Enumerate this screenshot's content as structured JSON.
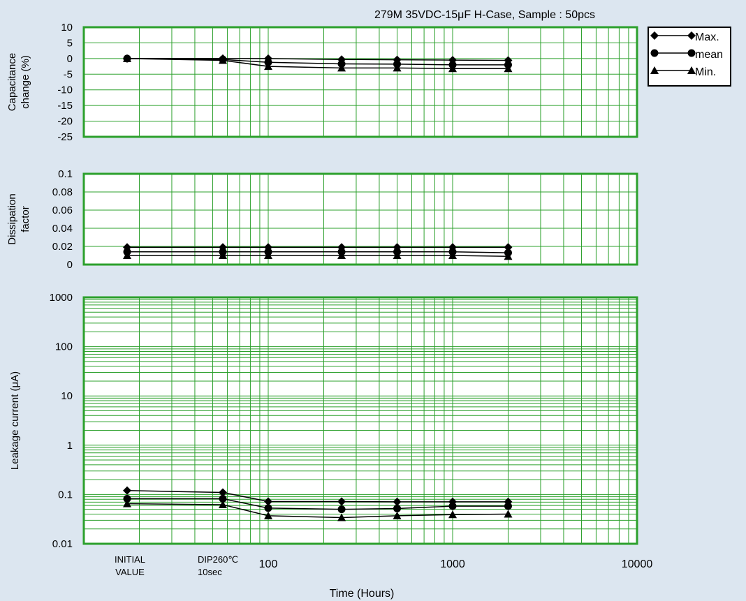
{
  "title": "279M  35VDC-15μF H-Case, Sample : 50pcs",
  "xlabel": "Time (Hours)",
  "x_tick_labels": [
    {
      "x": "INITIAL",
      "lines": [
        "INITIAL",
        "VALUE"
      ]
    },
    {
      "x": "DIP",
      "lines": [
        "DIP260℃",
        "10sec"
      ]
    },
    {
      "x": 100,
      "lines": [
        "100"
      ]
    },
    {
      "x": 1000,
      "lines": [
        "1000"
      ]
    },
    {
      "x": 10000,
      "lines": [
        "10000"
      ]
    }
  ],
  "legend": [
    {
      "name": "Max.",
      "marker": "diamond"
    },
    {
      "name": "mean",
      "marker": "circle"
    },
    {
      "name": "Min.",
      "marker": "triangle"
    }
  ],
  "colors": {
    "background": "#dce6f0",
    "plot_bg": "#ffffff",
    "grid": "#2ca02c",
    "frame": "#2ca02c",
    "series": "#000000"
  },
  "chart_data": [
    {
      "type": "line",
      "ylabel_lines": [
        "Capacitance",
        "change  (%)"
      ],
      "yscale": "linear",
      "ylim": [
        -25,
        10
      ],
      "yticks": [
        10,
        5,
        0,
        -5,
        -10,
        -15,
        -20,
        -25
      ],
      "x_scale": "log (hours)",
      "x": [
        "INITIAL",
        "DIP",
        100,
        250,
        500,
        1000,
        2000
      ],
      "series": [
        {
          "name": "Max.",
          "marker": "diamond",
          "values": [
            0,
            0,
            0,
            -0.3,
            -0.4,
            -0.5,
            -0.6
          ]
        },
        {
          "name": "mean",
          "marker": "circle",
          "values": [
            0,
            -0.3,
            -1.2,
            -1.7,
            -1.8,
            -2.0,
            -2.0
          ]
        },
        {
          "name": "Min.",
          "marker": "triangle",
          "values": [
            0,
            -0.6,
            -2.5,
            -3.0,
            -3.0,
            -3.2,
            -3.2
          ]
        }
      ]
    },
    {
      "type": "line",
      "ylabel_lines": [
        "Dissipation",
        "factor"
      ],
      "yscale": "linear",
      "ylim": [
        0,
        0.1
      ],
      "yticks": [
        0.1,
        0.08,
        0.06,
        0.04,
        0.02,
        0
      ],
      "x_scale": "log (hours)",
      "x": [
        "INITIAL",
        "DIP",
        100,
        250,
        500,
        1000,
        2000
      ],
      "series": [
        {
          "name": "Max.",
          "marker": "diamond",
          "values": [
            0.019,
            0.019,
            0.019,
            0.019,
            0.019,
            0.019,
            0.019
          ]
        },
        {
          "name": "mean",
          "marker": "circle",
          "values": [
            0.014,
            0.014,
            0.014,
            0.014,
            0.014,
            0.014,
            0.013
          ]
        },
        {
          "name": "Min.",
          "marker": "triangle",
          "values": [
            0.01,
            0.01,
            0.01,
            0.01,
            0.01,
            0.01,
            0.009
          ]
        }
      ]
    },
    {
      "type": "line",
      "ylabel_lines": [
        "Leakage  current (μA)"
      ],
      "yscale": "log",
      "ylim": [
        0.01,
        1000
      ],
      "yticks": [
        1000,
        100,
        10,
        1,
        0.1,
        0.01
      ],
      "x_scale": "log (hours)",
      "x": [
        "INITIAL",
        "DIP",
        100,
        250,
        500,
        1000,
        2000
      ],
      "series": [
        {
          "name": "Max.",
          "marker": "diamond",
          "values": [
            0.12,
            0.11,
            0.072,
            0.072,
            0.071,
            0.071,
            0.071
          ]
        },
        {
          "name": "mean",
          "marker": "circle",
          "values": [
            0.082,
            0.082,
            0.053,
            0.05,
            0.052,
            0.058,
            0.058
          ]
        },
        {
          "name": "Min.",
          "marker": "triangle",
          "values": [
            0.065,
            0.062,
            0.037,
            0.034,
            0.037,
            0.039,
            0.04
          ]
        }
      ]
    }
  ]
}
